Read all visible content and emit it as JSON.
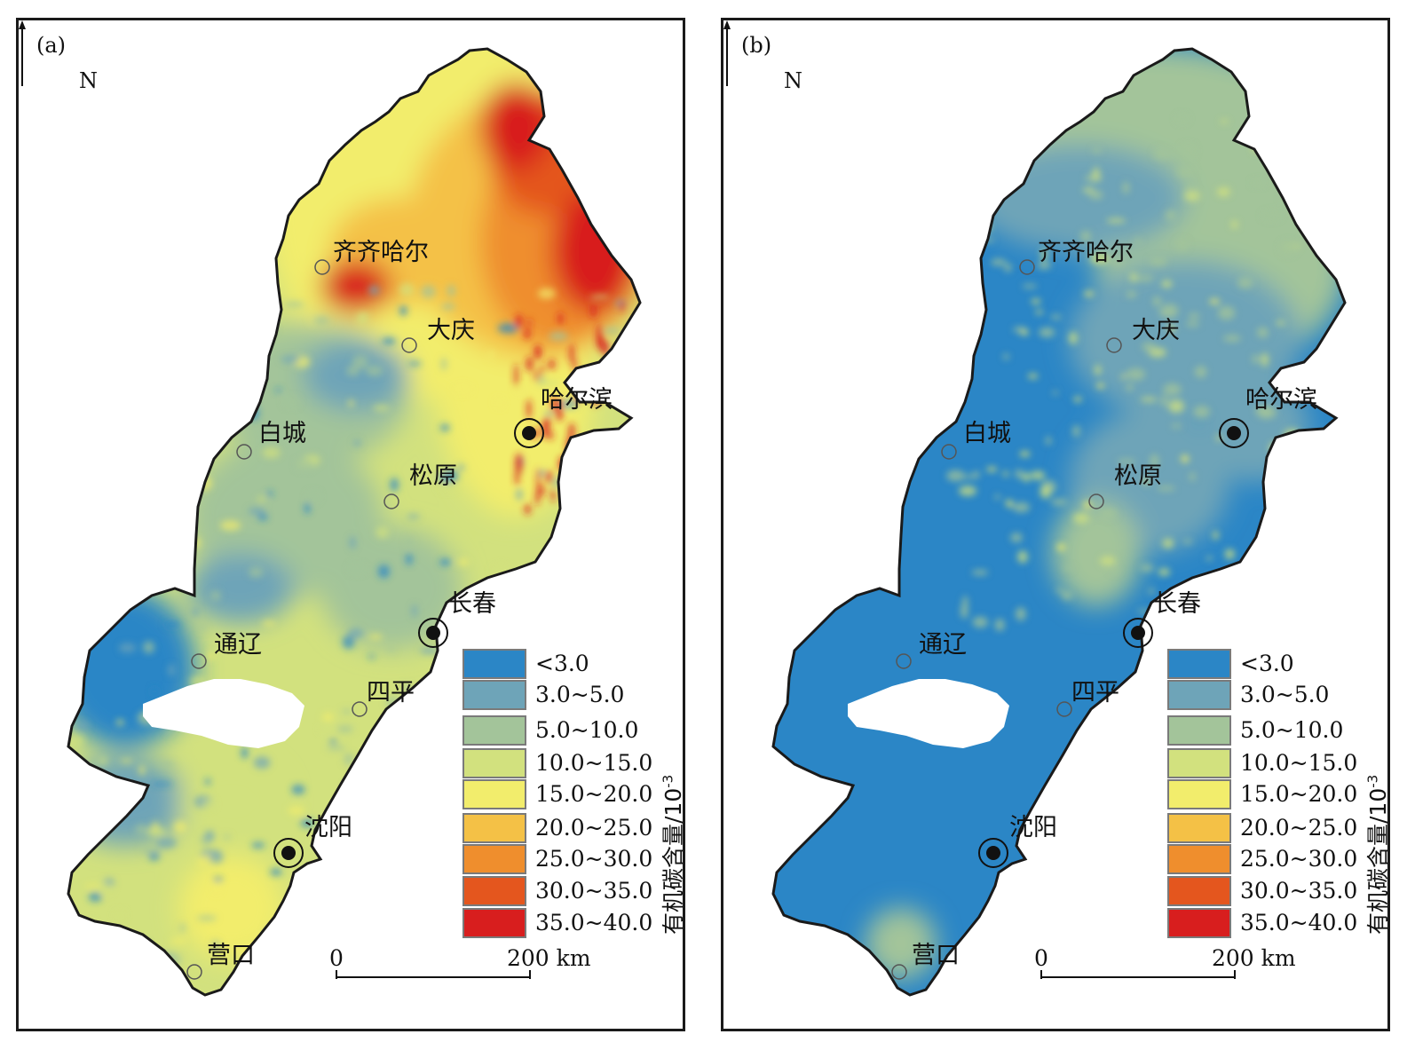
{
  "panels": [
    {
      "id": "a",
      "label": "(a)",
      "north": "N",
      "theme": "heterogeneous",
      "cities": [
        "齐齐哈尔",
        "大庆",
        "哈尔滨",
        "白城",
        "松原",
        "长春",
        "通辽",
        "四平",
        "沈阳",
        "营口"
      ],
      "legend_title": "有机碳含量/10",
      "legend_title_exp": "-3",
      "scale": {
        "start": "0",
        "end": "200 km"
      }
    },
    {
      "id": "b",
      "label": "(b)",
      "north": "N",
      "theme": "uniform",
      "cities": [
        "齐齐哈尔",
        "大庆",
        "哈尔滨",
        "白城",
        "松原",
        "长春",
        "通辽",
        "四平",
        "沈阳",
        "营口"
      ],
      "legend_title": "有机碳含量/10",
      "legend_title_exp": "-3",
      "scale": {
        "start": "0",
        "end": "200 km"
      }
    }
  ],
  "legend_classes": [
    {
      "label": "<3.0",
      "color": "#2b86c6"
    },
    {
      "label": "3.0~5.0",
      "color": "#6ea4b8"
    },
    {
      "label": "5.0~10.0",
      "color": "#a3c49a"
    },
    {
      "label": "10.0~15.0",
      "color": "#d2e17e"
    },
    {
      "label": "15.0~20.0",
      "color": "#f2ed6c"
    },
    {
      "label": "20.0~25.0",
      "color": "#f4c146"
    },
    {
      "label": "25.0~30.0",
      "color": "#ef8e2d"
    },
    {
      "label": "30.0~35.0",
      "color": "#e4561e"
    },
    {
      "label": "35.0~40.0",
      "color": "#d81e1e"
    }
  ],
  "major_city_markers": [
    "哈尔滨",
    "长春",
    "沈阳"
  ]
}
